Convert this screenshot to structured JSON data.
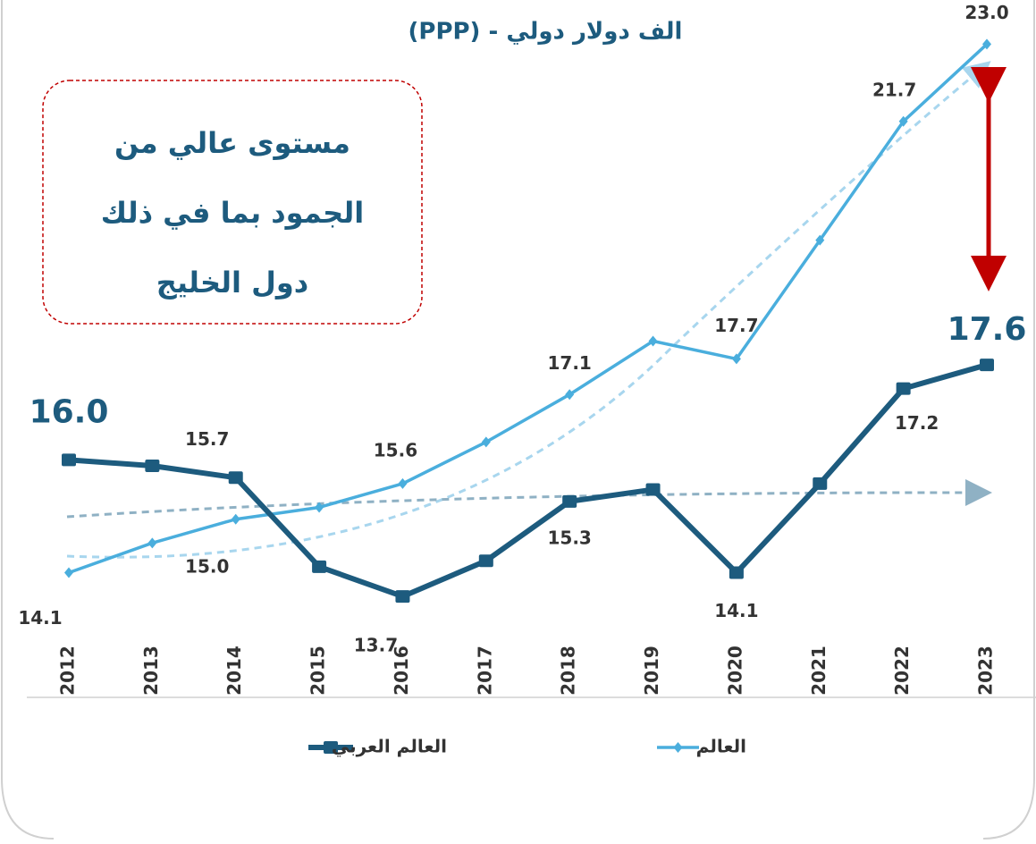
{
  "chart_data": {
    "type": "line",
    "title": "(PPP) - الف دولار دولي",
    "annotation": [
      "مستوى عالي من",
      "الجمود بما في ذلك",
      "دول الخليج"
    ],
    "categories": [
      "2012",
      "2013",
      "2014",
      "2015",
      "2016",
      "2017",
      "2018",
      "2019",
      "2020",
      "2021",
      "2022",
      "2023"
    ],
    "series": [
      {
        "name": "العالم العربي",
        "color": "#1d5b7e",
        "marker": "square",
        "values": [
          16.0,
          15.9,
          15.7,
          14.2,
          13.7,
          14.3,
          15.3,
          15.5,
          14.1,
          15.6,
          17.2,
          17.6
        ],
        "value_labels": [
          "16.0",
          null,
          "15.7",
          null,
          "13.7",
          null,
          "15.3",
          null,
          "14.1",
          null,
          "17.2",
          "17.6"
        ]
      },
      {
        "name": "العالم",
        "color": "#4aaedd",
        "marker": "diamond",
        "values": [
          14.1,
          14.6,
          15.0,
          15.2,
          15.6,
          16.3,
          17.1,
          18.0,
          17.7,
          19.7,
          21.7,
          23.0
        ],
        "value_labels": [
          "14.1",
          null,
          "15.0",
          null,
          "15.6",
          null,
          "17.1",
          null,
          "17.7",
          null,
          "21.7",
          "23.0"
        ]
      }
    ],
    "ylim": [
      12,
      24
    ]
  }
}
